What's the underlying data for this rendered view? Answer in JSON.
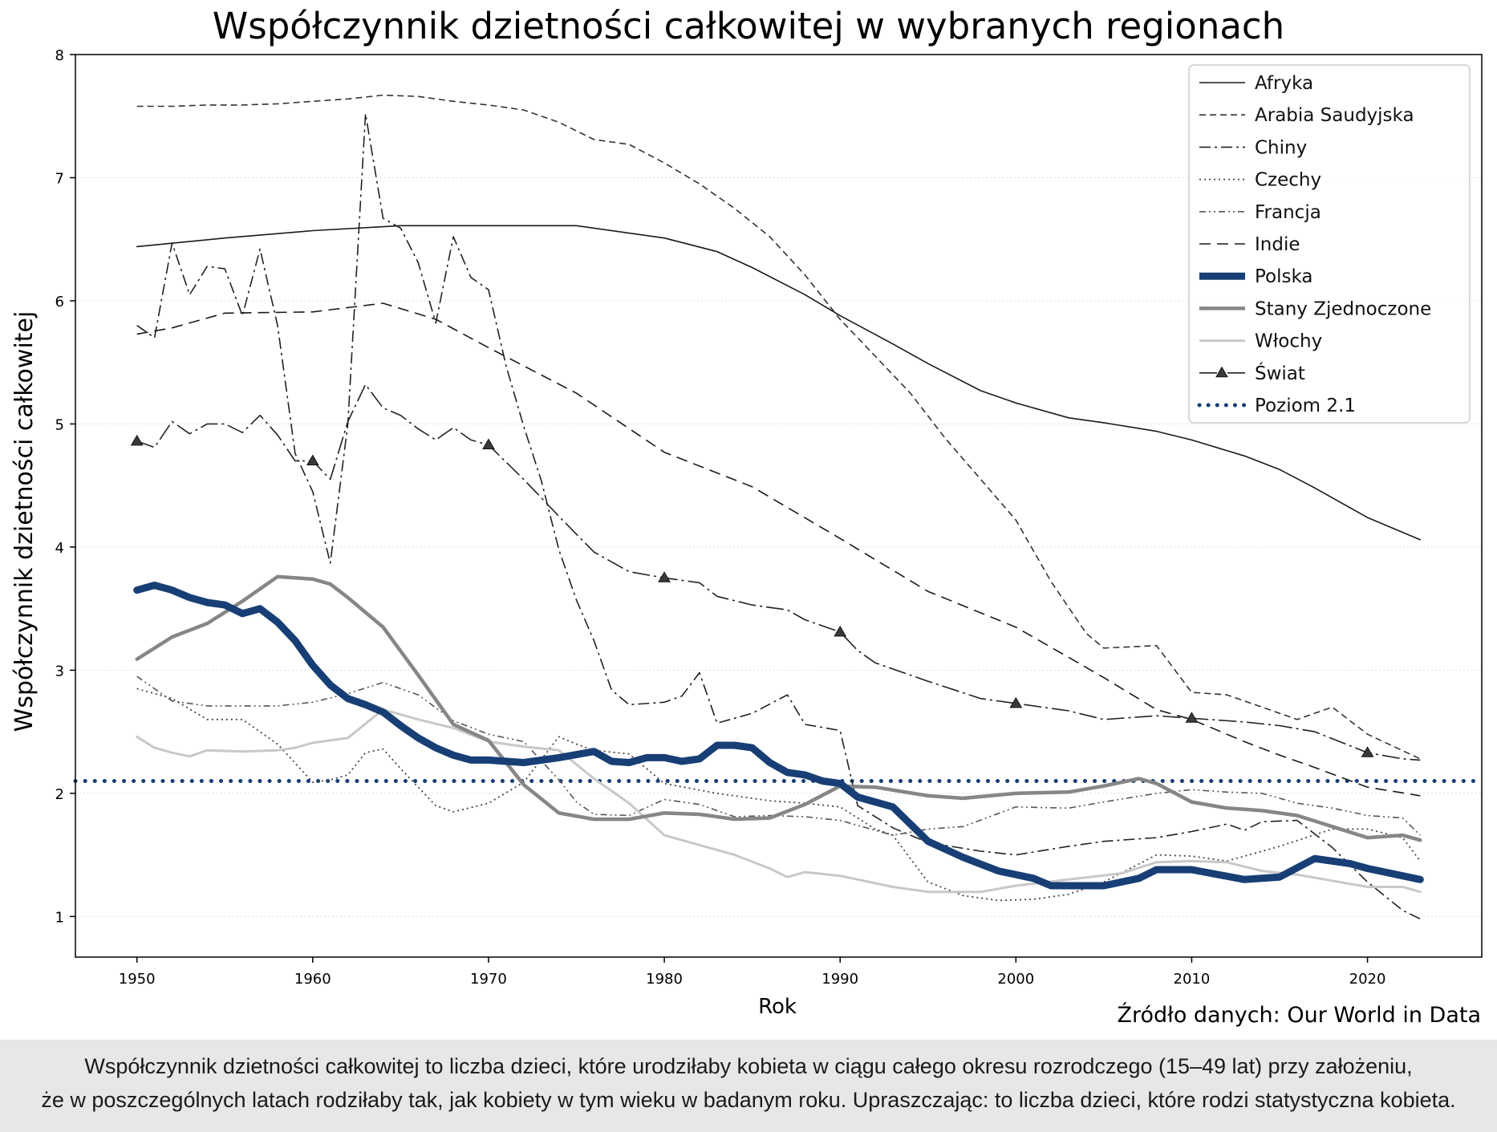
{
  "chart_data": {
    "type": "line",
    "title": "Współczynnik dzietności całkowitej w wybranych regionach",
    "xlabel": "Rok",
    "ylabel": "Współczynnik dzietności całkowitej",
    "xlim": [
      1946.5,
      2026.5
    ],
    "ylim": [
      0.67,
      8.0
    ],
    "xticks": [
      1950,
      1960,
      1970,
      1980,
      1990,
      2000,
      2010,
      2020
    ],
    "yticks": [
      1,
      2,
      3,
      4,
      5,
      6,
      7,
      8
    ],
    "grid": "horizontal dotted",
    "legend_position": "top-right",
    "reference_line": {
      "name": "Poziom 2.1",
      "y": 2.1
    },
    "series": [
      {
        "name": "Afryka",
        "color": "#1a1a1a",
        "x": [
          1950,
          1955,
          1960,
          1965,
          1970,
          1975,
          1980,
          1983,
          1985,
          1988,
          1990,
          1993,
          1995,
          1998,
          2000,
          2003,
          2005,
          2008,
          2010,
          2013,
          2015,
          2017,
          2020,
          2023
        ],
        "y": [
          6.44,
          6.51,
          6.57,
          6.61,
          6.61,
          6.61,
          6.51,
          6.4,
          6.27,
          6.05,
          5.88,
          5.65,
          5.49,
          5.27,
          5.17,
          5.05,
          5.01,
          4.94,
          4.87,
          4.74,
          4.63,
          4.48,
          4.24,
          4.06
        ]
      },
      {
        "name": "Arabia Saudyjska",
        "color": "#333333",
        "x": [
          1950,
          1952,
          1954,
          1956,
          1958,
          1960,
          1962,
          1964,
          1966,
          1968,
          1970,
          1972,
          1974,
          1976,
          1978,
          1980,
          1982,
          1984,
          1986,
          1988,
          1990,
          1992,
          1994,
          1996,
          1998,
          2000,
          2002,
          2004,
          2005,
          2008,
          2010,
          2012,
          2014,
          2016,
          2018,
          2020,
          2023
        ],
        "y": [
          7.58,
          7.58,
          7.59,
          7.59,
          7.6,
          7.62,
          7.64,
          7.67,
          7.66,
          7.62,
          7.59,
          7.55,
          7.45,
          7.31,
          7.27,
          7.12,
          6.95,
          6.75,
          6.52,
          6.21,
          5.85,
          5.55,
          5.25,
          4.88,
          4.55,
          4.22,
          3.72,
          3.3,
          3.18,
          3.2,
          2.82,
          2.8,
          2.7,
          2.6,
          2.7,
          2.48,
          2.28
        ]
      },
      {
        "name": "Chiny",
        "color": "#222222",
        "x": [
          1950,
          1951,
          1952,
          1953,
          1954,
          1955,
          1956,
          1957,
          1958,
          1959,
          1960,
          1961,
          1962,
          1963,
          1964,
          1965,
          1966,
          1967,
          1968,
          1969,
          1970,
          1971,
          1972,
          1973,
          1974,
          1975,
          1976,
          1977,
          1978,
          1980,
          1981,
          1982,
          1983,
          1985,
          1987,
          1988,
          1990,
          1991,
          1993,
          1995,
          1998,
          2000,
          2003,
          2005,
          2008,
          2010,
          2012,
          2013,
          2014,
          2016,
          2018,
          2020,
          2022,
          2023
        ],
        "y": [
          5.8,
          5.7,
          6.47,
          6.05,
          6.28,
          6.26,
          5.88,
          6.42,
          5.8,
          4.76,
          4.45,
          3.87,
          5.0,
          7.52,
          6.67,
          6.59,
          6.31,
          5.82,
          6.52,
          6.19,
          6.09,
          5.47,
          4.98,
          4.54,
          3.98,
          3.57,
          3.24,
          2.84,
          2.72,
          2.74,
          2.79,
          2.98,
          2.57,
          2.65,
          2.8,
          2.56,
          2.51,
          1.9,
          1.72,
          1.6,
          1.53,
          1.5,
          1.57,
          1.61,
          1.64,
          1.69,
          1.75,
          1.7,
          1.77,
          1.78,
          1.56,
          1.28,
          1.05,
          0.98
        ]
      },
      {
        "name": "Czechy",
        "color": "#444444",
        "x": [
          1950,
          1952,
          1954,
          1956,
          1958,
          1960,
          1961,
          1962,
          1963,
          1964,
          1965,
          1967,
          1968,
          1970,
          1972,
          1974,
          1975,
          1976,
          1978,
          1980,
          1983,
          1986,
          1988,
          1990,
          1992,
          1993,
          1995,
          1997,
          1999,
          2001,
          2003,
          2005,
          2008,
          2010,
          2012,
          2015,
          2018,
          2020,
          2022,
          2023
        ],
        "y": [
          2.85,
          2.77,
          2.6,
          2.6,
          2.4,
          2.09,
          2.11,
          2.15,
          2.33,
          2.36,
          2.2,
          1.9,
          1.85,
          1.92,
          2.09,
          2.46,
          2.4,
          2.35,
          2.32,
          2.08,
          2.0,
          1.94,
          1.92,
          1.89,
          1.71,
          1.66,
          1.28,
          1.17,
          1.13,
          1.14,
          1.18,
          1.28,
          1.5,
          1.49,
          1.45,
          1.57,
          1.71,
          1.71,
          1.64,
          1.45
        ]
      },
      {
        "name": "Francja",
        "color": "#555555",
        "x": [
          1950,
          1952,
          1954,
          1956,
          1958,
          1960,
          1962,
          1964,
          1966,
          1968,
          1970,
          1972,
          1974,
          1975,
          1976,
          1978,
          1980,
          1982,
          1984,
          1986,
          1988,
          1990,
          1993,
          1995,
          1997,
          2000,
          2003,
          2005,
          2008,
          2010,
          2012,
          2014,
          2016,
          2018,
          2020,
          2022,
          2023
        ],
        "y": [
          2.95,
          2.75,
          2.71,
          2.71,
          2.71,
          2.74,
          2.81,
          2.9,
          2.8,
          2.59,
          2.48,
          2.42,
          2.11,
          1.93,
          1.83,
          1.82,
          1.95,
          1.91,
          1.81,
          1.82,
          1.81,
          1.78,
          1.66,
          1.71,
          1.73,
          1.89,
          1.88,
          1.93,
          2.0,
          2.03,
          2.01,
          2.0,
          1.92,
          1.88,
          1.82,
          1.8,
          1.66
        ]
      },
      {
        "name": "Indie",
        "color": "#1a1a1a",
        "x": [
          1950,
          1952,
          1955,
          1960,
          1964,
          1967,
          1970,
          1975,
          1980,
          1985,
          1990,
          1995,
          2000,
          2005,
          2008,
          2010,
          2013,
          2015,
          2017,
          2020,
          2023
        ],
        "y": [
          5.73,
          5.78,
          5.9,
          5.91,
          5.98,
          5.85,
          5.62,
          5.25,
          4.77,
          4.49,
          4.07,
          3.64,
          3.35,
          2.94,
          2.68,
          2.6,
          2.42,
          2.31,
          2.21,
          2.05,
          1.98
        ]
      },
      {
        "name": "Polska",
        "color": "#173f75",
        "x": [
          1950,
          1951,
          1952,
          1953,
          1954,
          1955,
          1956,
          1957,
          1958,
          1959,
          1960,
          1961,
          1962,
          1963,
          1964,
          1965,
          1966,
          1967,
          1968,
          1969,
          1970,
          1972,
          1974,
          1976,
          1977,
          1978,
          1979,
          1980,
          1981,
          1982,
          1983,
          1984,
          1985,
          1986,
          1987,
          1988,
          1989,
          1990,
          1991,
          1993,
          1995,
          1997,
          1999,
          2001,
          2002,
          2003,
          2005,
          2007,
          2008,
          2010,
          2013,
          2015,
          2017,
          2019,
          2020,
          2023
        ],
        "y": [
          3.65,
          3.69,
          3.65,
          3.59,
          3.55,
          3.53,
          3.46,
          3.5,
          3.39,
          3.24,
          3.04,
          2.88,
          2.77,
          2.72,
          2.66,
          2.55,
          2.45,
          2.37,
          2.31,
          2.27,
          2.27,
          2.25,
          2.29,
          2.34,
          2.26,
          2.25,
          2.29,
          2.29,
          2.26,
          2.28,
          2.39,
          2.39,
          2.37,
          2.25,
          2.17,
          2.15,
          2.1,
          2.08,
          1.97,
          1.89,
          1.61,
          1.48,
          1.37,
          1.31,
          1.25,
          1.25,
          1.25,
          1.31,
          1.38,
          1.38,
          1.3,
          1.32,
          1.47,
          1.43,
          1.39,
          1.3
        ]
      },
      {
        "name": "Stany Zjednoczone",
        "color": "#868686",
        "x": [
          1950,
          1952,
          1954,
          1956,
          1958,
          1960,
          1961,
          1962,
          1964,
          1966,
          1968,
          1970,
          1972,
          1974,
          1976,
          1978,
          1980,
          1982,
          1984,
          1986,
          1988,
          1990,
          1992,
          1995,
          1997,
          2000,
          2003,
          2005,
          2007,
          2008,
          2010,
          2012,
          2013,
          2014,
          2016,
          2018,
          2020,
          2022,
          2023
        ],
        "y": [
          3.09,
          3.27,
          3.38,
          3.56,
          3.76,
          3.74,
          3.7,
          3.59,
          3.35,
          2.96,
          2.56,
          2.43,
          2.07,
          1.84,
          1.79,
          1.79,
          1.84,
          1.83,
          1.79,
          1.8,
          1.91,
          2.06,
          2.05,
          1.98,
          1.96,
          2.0,
          2.01,
          2.06,
          2.12,
          2.08,
          1.93,
          1.88,
          1.87,
          1.86,
          1.82,
          1.73,
          1.64,
          1.66,
          1.62
        ]
      },
      {
        "name": "Włochy",
        "color": "#c8c8c8",
        "x": [
          1950,
          1951,
          1952,
          1953,
          1954,
          1956,
          1958,
          1959,
          1960,
          1962,
          1964,
          1966,
          1968,
          1970,
          1972,
          1974,
          1976,
          1978,
          1980,
          1982,
          1984,
          1986,
          1987,
          1988,
          1990,
          1993,
          1995,
          1998,
          2000,
          2003,
          2006,
          2008,
          2010,
          2012,
          2014,
          2016,
          2018,
          2020,
          2022,
          2023
        ],
        "y": [
          2.46,
          2.37,
          2.33,
          2.3,
          2.35,
          2.34,
          2.35,
          2.37,
          2.41,
          2.45,
          2.68,
          2.6,
          2.53,
          2.42,
          2.38,
          2.35,
          2.12,
          1.92,
          1.66,
          1.58,
          1.5,
          1.39,
          1.32,
          1.36,
          1.33,
          1.24,
          1.2,
          1.2,
          1.25,
          1.3,
          1.35,
          1.44,
          1.45,
          1.44,
          1.37,
          1.34,
          1.29,
          1.24,
          1.24,
          1.2
        ]
      },
      {
        "name": "Świat",
        "color": "#222222",
        "x": [
          1950,
          1951,
          1952,
          1953,
          1954,
          1955,
          1956,
          1957,
          1958,
          1959,
          1960,
          1961,
          1962,
          1963,
          1964,
          1965,
          1966,
          1967,
          1968,
          1969,
          1970,
          1972,
          1974,
          1976,
          1978,
          1980,
          1982,
          1983,
          1985,
          1987,
          1988,
          1990,
          1991,
          1992,
          1995,
          1998,
          2000,
          2003,
          2005,
          2008,
          2010,
          2013,
          2015,
          2017,
          2020,
          2022,
          2023
        ],
        "y": [
          4.86,
          4.81,
          5.02,
          4.92,
          5.0,
          5.0,
          4.93,
          5.07,
          4.91,
          4.7,
          4.7,
          4.55,
          5.02,
          5.32,
          5.13,
          5.07,
          4.96,
          4.87,
          4.97,
          4.87,
          4.83,
          4.55,
          4.25,
          3.96,
          3.8,
          3.75,
          3.71,
          3.6,
          3.53,
          3.49,
          3.41,
          3.31,
          3.16,
          3.06,
          2.91,
          2.77,
          2.73,
          2.67,
          2.6,
          2.63,
          2.61,
          2.58,
          2.55,
          2.5,
          2.33,
          2.28,
          2.27
        ]
      }
    ]
  },
  "source_note": "Źródło danych: Our World in Data",
  "footer": {
    "line1": "Współczynnik dzietności całkowitej to liczba dzieci, które urodziłaby kobieta w ciągu całego okresu rozrodczego (15–49 lat) przy założeniu,",
    "line2": "że w poszczególnych latach rodziłaby tak, jak kobiety w tym wieku w badanym roku. Upraszczając: to liczba dzieci, które rodzi statystyczna kobieta."
  }
}
